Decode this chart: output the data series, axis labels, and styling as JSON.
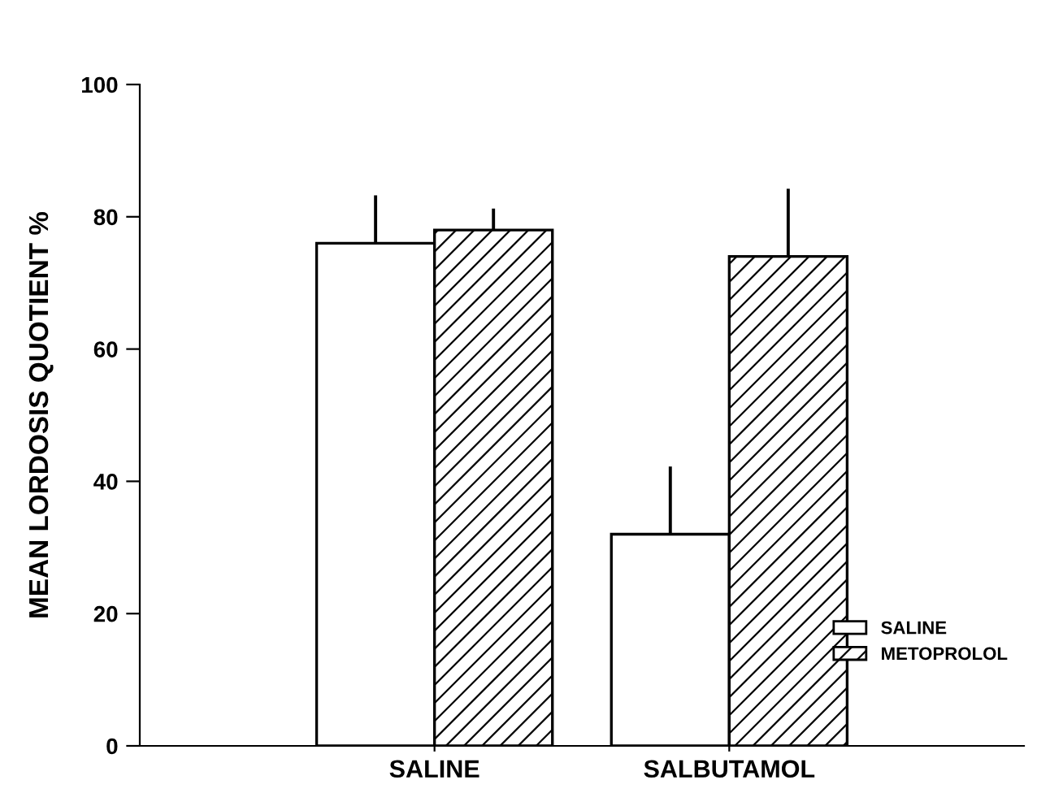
{
  "chart_data": {
    "type": "bar",
    "ylabel": "MEAN LORDOSIS QUOTIENT %",
    "categories": [
      "SALINE",
      "SALBUTAMOL"
    ],
    "series": [
      {
        "name": "SALINE",
        "color": "#ffffff",
        "values": [
          76,
          32
        ],
        "errors": [
          [
            76,
            83
          ],
          [
            32,
            42
          ]
        ]
      },
      {
        "name": "METOPROLOL",
        "color": "#000000",
        "values": [
          78,
          74
        ],
        "errors": [
          [
            78,
            81
          ],
          [
            74,
            84
          ]
        ]
      }
    ],
    "ylim": [
      0,
      100
    ],
    "yticks": [
      0,
      20,
      40,
      60,
      80,
      100
    ],
    "grid": false,
    "legend": "bottom right"
  }
}
